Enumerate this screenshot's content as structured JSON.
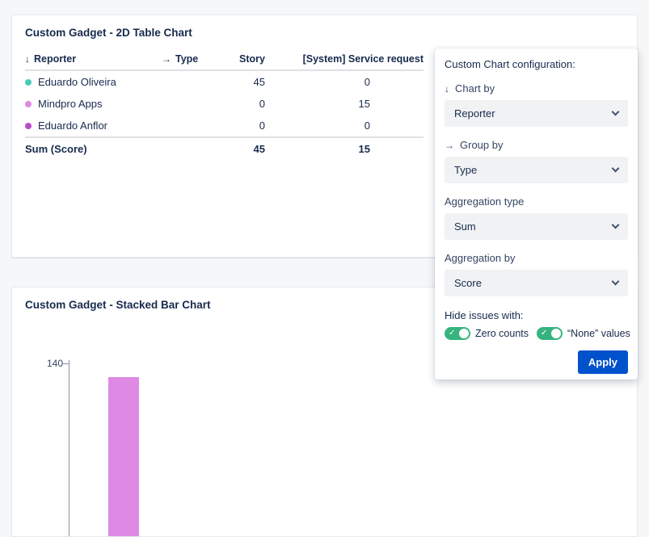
{
  "icons": {
    "arrow_down": "↓",
    "arrow_right": "→",
    "check": "✓"
  },
  "colors": {
    "apply_button": "#0052CC",
    "toggle_on": "#36B37E"
  },
  "table_card": {
    "title": "Custom Gadget - 2D Table Chart",
    "header": {
      "reporter": "Reporter",
      "type": "Type",
      "story": "Story",
      "service_request": "[System] Service request"
    },
    "rows": [
      {
        "name": "Eduardo Oliveira",
        "dot_color": "#49CCB5",
        "story": "45",
        "service_request": "0"
      },
      {
        "name": "Mindpro Apps",
        "dot_color": "#DE8AE4",
        "story": "0",
        "service_request": "15"
      },
      {
        "name": "Eduardo Anflor",
        "dot_color": "#B94BC8",
        "story": "0",
        "service_request": "0"
      }
    ],
    "sum": {
      "label": "Sum (Score)",
      "story": "45",
      "service_request": "15"
    }
  },
  "bar_card": {
    "title": "Custom Gadget - Stacked Bar Chart",
    "y_tick": "140",
    "bar_color": "#DE8AE4"
  },
  "config": {
    "title": "Custom Chart configuration:",
    "chart_by": {
      "label": "Chart by",
      "value": "Reporter"
    },
    "group_by": {
      "label": "Group by",
      "value": "Type"
    },
    "aggregation_type": {
      "label": "Aggregation type",
      "value": "Sum"
    },
    "aggregation_by": {
      "label": "Aggregation by",
      "value": "Score"
    },
    "hide_label": "Hide issues with:",
    "toggle_zero": "Zero counts",
    "toggle_none": "“None” values",
    "apply": "Apply"
  },
  "chart_data": [
    {
      "type": "table",
      "title": "Custom Gadget - 2D Table Chart",
      "row_dimension": "Reporter",
      "column_dimension": "Type",
      "columns": [
        "Story",
        "[System] Service request"
      ],
      "rows": [
        {
          "reporter": "Eduardo Oliveira",
          "values": [
            45,
            0
          ]
        },
        {
          "reporter": "Mindpro Apps",
          "values": [
            0,
            15
          ]
        },
        {
          "reporter": "Eduardo Anflor",
          "values": [
            0,
            0
          ]
        }
      ],
      "sum_row": {
        "label": "Sum (Score)",
        "values": [
          45,
          15
        ]
      },
      "series_colors": [
        "#49CCB5",
        "#DE8AE4",
        "#B94BC8"
      ]
    },
    {
      "type": "bar",
      "stacked": true,
      "title": "Custom Gadget - Stacked Bar Chart",
      "visible_y_ticks": [
        140
      ],
      "visible_bars": [
        {
          "color": "#DE8AE4"
        }
      ],
      "partially_visible": true
    }
  ]
}
